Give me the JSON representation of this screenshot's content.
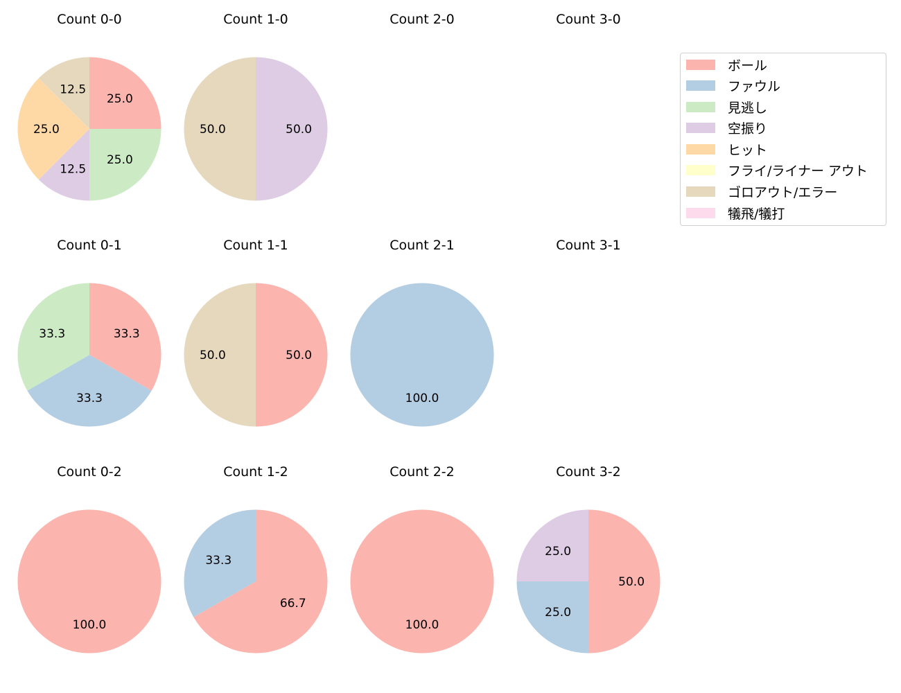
{
  "chart_data": {
    "type": "pie",
    "layout": {
      "rows": 3,
      "cols": 4,
      "start_angle_deg": 90,
      "direction": "clockwise",
      "legend_position": "upper right"
    },
    "categories": [
      "ボール",
      "ファウル",
      "見逃し",
      "空振り",
      "ヒット",
      "フライ/ライナー アウト",
      "ゴロアウト/エラー",
      "犠飛/犠打"
    ],
    "colors": [
      "#fbb4ae",
      "#b3cde3",
      "#ccebc5",
      "#decbe4",
      "#fed9a6",
      "#ffffcc",
      "#e5d8bd",
      "#fddaec"
    ],
    "charts": [
      {
        "title": "Count 0-0",
        "values": {
          "ボール": 25.0,
          "見逃し": 25.0,
          "空振り": 12.5,
          "ヒット": 25.0,
          "ゴロアウト/エラー": 12.5
        }
      },
      {
        "title": "Count 1-0",
        "values": {
          "空振り": 50.0,
          "ゴロアウト/エラー": 50.0
        }
      },
      {
        "title": "Count 2-0",
        "values": {}
      },
      {
        "title": "Count 3-0",
        "values": {}
      },
      {
        "title": "Count 0-1",
        "values": {
          "ボール": 33.3,
          "ファウル": 33.3,
          "見逃し": 33.3
        }
      },
      {
        "title": "Count 1-1",
        "values": {
          "ボール": 50.0,
          "ゴロアウト/エラー": 50.0
        }
      },
      {
        "title": "Count 2-1",
        "values": {
          "ファウル": 100.0
        }
      },
      {
        "title": "Count 3-1",
        "values": {}
      },
      {
        "title": "Count 0-2",
        "values": {
          "ボール": 100.0
        }
      },
      {
        "title": "Count 1-2",
        "values": {
          "ボール": 66.7,
          "ファウル": 33.3
        }
      },
      {
        "title": "Count 2-2",
        "values": {
          "ボール": 100.0
        }
      },
      {
        "title": "Count 3-2",
        "values": {
          "ボール": 50.0,
          "ファウル": 25.0,
          "空振り": 25.0
        }
      }
    ]
  },
  "legend": {
    "items": [
      {
        "label": "ボール",
        "color": "#fbb4ae"
      },
      {
        "label": "ファウル",
        "color": "#b3cde3"
      },
      {
        "label": "見逃し",
        "color": "#ccebc5"
      },
      {
        "label": "空振り",
        "color": "#decbe4"
      },
      {
        "label": "ヒット",
        "color": "#fed9a6"
      },
      {
        "label": "フライ/ライナー アウト",
        "color": "#ffffcc"
      },
      {
        "label": "ゴロアウト/エラー",
        "color": "#e5d8bd"
      },
      {
        "label": "犠飛/犠打",
        "color": "#fddaec"
      }
    ]
  }
}
